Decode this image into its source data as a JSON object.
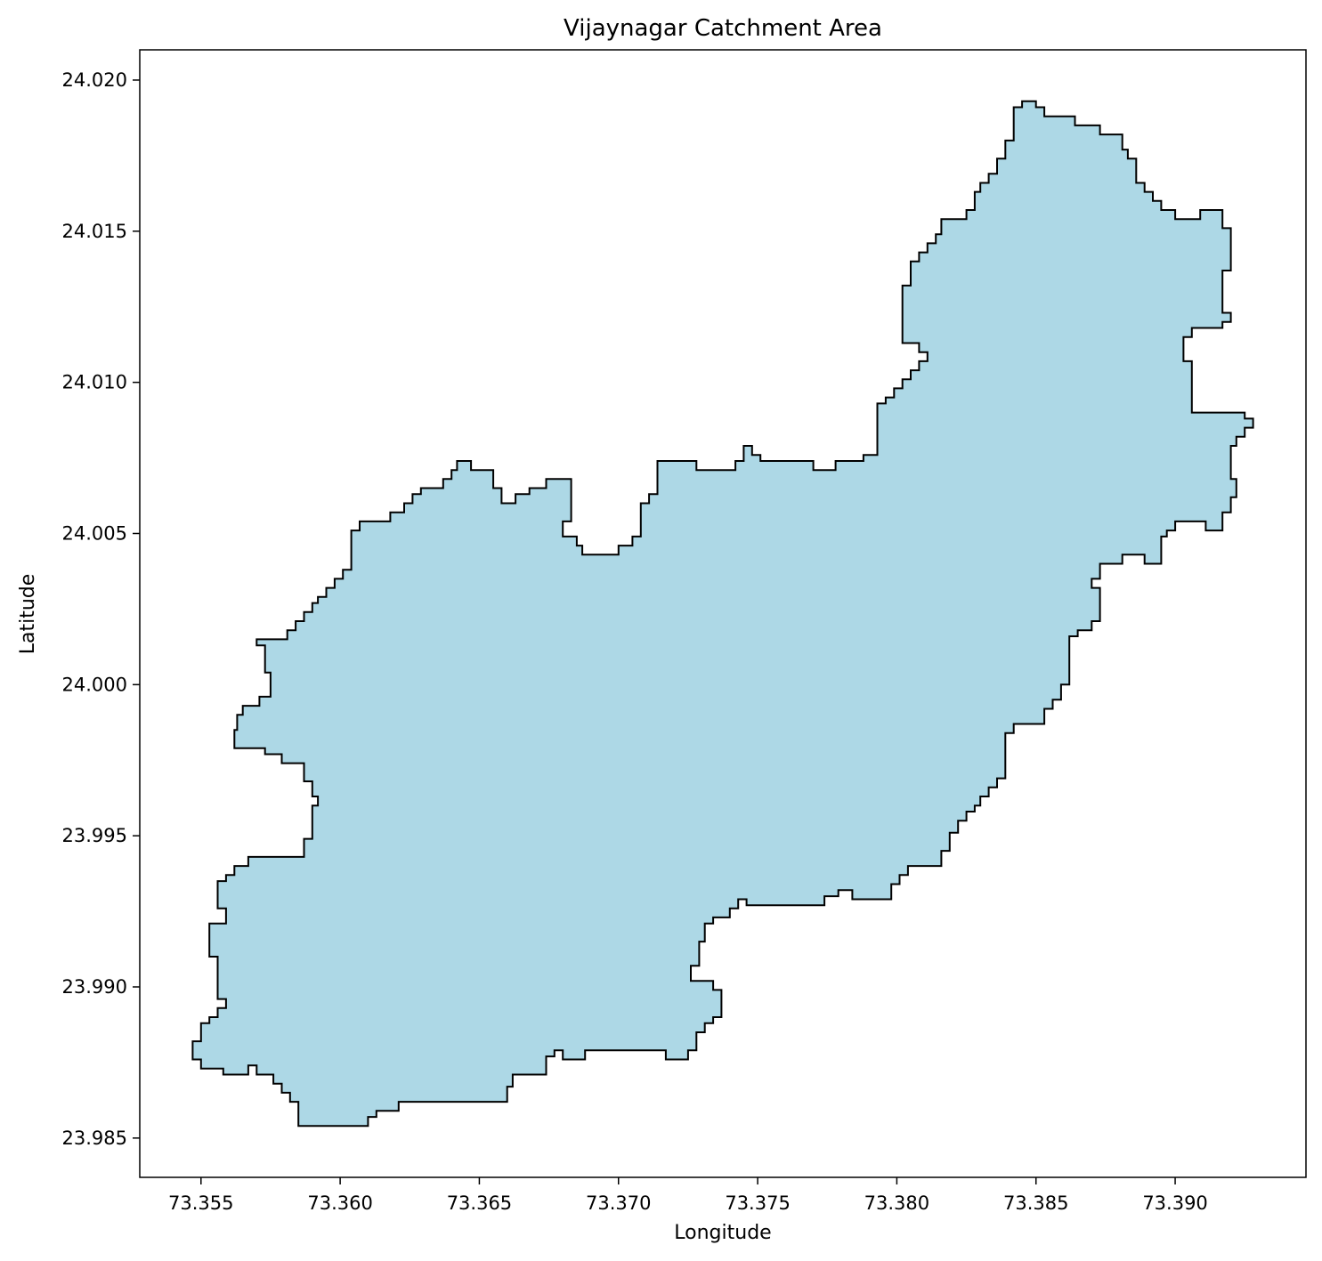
{
  "chart_data": {
    "type": "map",
    "title": "Vijaynagar Catchment Area",
    "xlabel": "Longitude",
    "ylabel": "Latitude",
    "xlim": [
      73.3528,
      73.3947
    ],
    "ylim": [
      23.9837,
      24.021
    ],
    "x_ticks": [
      "73.355",
      "73.360",
      "73.365",
      "73.370",
      "73.375",
      "73.380",
      "73.385",
      "73.390"
    ],
    "x_tick_values": [
      73.355,
      73.36,
      73.365,
      73.37,
      73.375,
      73.38,
      73.385,
      73.39
    ],
    "y_ticks": [
      "23.985",
      "23.990",
      "23.995",
      "24.000",
      "24.005",
      "24.010",
      "24.015",
      "24.020"
    ],
    "y_tick_values": [
      23.985,
      23.99,
      23.995,
      24.0,
      24.005,
      24.01,
      24.015,
      24.02
    ],
    "grid": false,
    "legend": "none",
    "fill_color": "#add8e6",
    "edge_color": "#000000",
    "polygon": [
      [
        73.3585,
        23.9854
      ],
      [
        73.361,
        23.9854
      ],
      [
        73.361,
        23.9857
      ],
      [
        73.3613,
        23.9857
      ],
      [
        73.3613,
        23.9859
      ],
      [
        73.3621,
        23.9859
      ],
      [
        73.3621,
        23.9862
      ],
      [
        73.366,
        23.9862
      ],
      [
        73.366,
        23.9867
      ],
      [
        73.3662,
        23.9867
      ],
      [
        73.3662,
        23.9871
      ],
      [
        73.3674,
        23.9871
      ],
      [
        73.3674,
        23.9877
      ],
      [
        73.3677,
        23.9877
      ],
      [
        73.3677,
        23.9879
      ],
      [
        73.368,
        23.9879
      ],
      [
        73.368,
        23.9876
      ],
      [
        73.3688,
        23.9876
      ],
      [
        73.3688,
        23.9879
      ],
      [
        73.3717,
        23.9879
      ],
      [
        73.3717,
        23.9876
      ],
      [
        73.3725,
        23.9876
      ],
      [
        73.3725,
        23.9879
      ],
      [
        73.3728,
        23.9879
      ],
      [
        73.3728,
        23.9885
      ],
      [
        73.3731,
        23.9885
      ],
      [
        73.3731,
        23.9888
      ],
      [
        73.3734,
        23.9888
      ],
      [
        73.3734,
        23.989
      ],
      [
        73.3737,
        23.989
      ],
      [
        73.3737,
        23.9899
      ],
      [
        73.3734,
        23.9899
      ],
      [
        73.3734,
        23.9902
      ],
      [
        73.3726,
        23.9902
      ],
      [
        73.3726,
        23.9907
      ],
      [
        73.3729,
        23.9907
      ],
      [
        73.3729,
        23.9915
      ],
      [
        73.3731,
        23.9915
      ],
      [
        73.3731,
        23.9921
      ],
      [
        73.3734,
        23.9921
      ],
      [
        73.3734,
        23.9923
      ],
      [
        73.374,
        23.9923
      ],
      [
        73.374,
        23.9926
      ],
      [
        73.3743,
        23.9926
      ],
      [
        73.3743,
        23.9929
      ],
      [
        73.3746,
        23.9929
      ],
      [
        73.3746,
        23.9927
      ],
      [
        73.3774,
        23.9927
      ],
      [
        73.3774,
        23.993
      ],
      [
        73.3779,
        23.993
      ],
      [
        73.3779,
        23.9932
      ],
      [
        73.3784,
        23.9932
      ],
      [
        73.3784,
        23.9929
      ],
      [
        73.3798,
        23.9929
      ],
      [
        73.3798,
        23.9934
      ],
      [
        73.3801,
        23.9934
      ],
      [
        73.3801,
        23.9937
      ],
      [
        73.3804,
        23.9937
      ],
      [
        73.3804,
        23.994
      ],
      [
        73.3816,
        23.994
      ],
      [
        73.3816,
        23.9945
      ],
      [
        73.3819,
        23.9945
      ],
      [
        73.3819,
        23.9951
      ],
      [
        73.3822,
        23.9951
      ],
      [
        73.3822,
        23.9955
      ],
      [
        73.3825,
        23.9955
      ],
      [
        73.3825,
        23.9958
      ],
      [
        73.3828,
        23.9958
      ],
      [
        73.3828,
        23.996
      ],
      [
        73.383,
        23.996
      ],
      [
        73.383,
        23.9963
      ],
      [
        73.3833,
        23.9963
      ],
      [
        73.3833,
        23.9966
      ],
      [
        73.3836,
        23.9966
      ],
      [
        73.3836,
        23.9969
      ],
      [
        73.3839,
        23.9969
      ],
      [
        73.3839,
        23.9984
      ],
      [
        73.3842,
        23.9984
      ],
      [
        73.3842,
        23.9987
      ],
      [
        73.3853,
        23.9987
      ],
      [
        73.3853,
        23.9992
      ],
      [
        73.3856,
        23.9992
      ],
      [
        73.3856,
        23.9995
      ],
      [
        73.3859,
        23.9995
      ],
      [
        73.3859,
        24.0
      ],
      [
        73.3862,
        24.0
      ],
      [
        73.3862,
        24.0016
      ],
      [
        73.3865,
        24.0016
      ],
      [
        73.3865,
        24.0018
      ],
      [
        73.387,
        24.0018
      ],
      [
        73.387,
        24.0021
      ],
      [
        73.3873,
        24.0021
      ],
      [
        73.3873,
        24.0032
      ],
      [
        73.387,
        24.0032
      ],
      [
        73.387,
        24.0035
      ],
      [
        73.3873,
        24.0035
      ],
      [
        73.3873,
        24.004
      ],
      [
        73.3881,
        24.004
      ],
      [
        73.3881,
        24.0043
      ],
      [
        73.3889,
        24.0043
      ],
      [
        73.3889,
        24.004
      ],
      [
        73.3895,
        24.004
      ],
      [
        73.3895,
        24.0049
      ],
      [
        73.3897,
        24.0049
      ],
      [
        73.3897,
        24.0051
      ],
      [
        73.39,
        24.0051
      ],
      [
        73.39,
        24.0054
      ],
      [
        73.3911,
        24.0054
      ],
      [
        73.3911,
        24.0051
      ],
      [
        73.3917,
        24.0051
      ],
      [
        73.3917,
        24.0057
      ],
      [
        73.392,
        24.0057
      ],
      [
        73.392,
        24.0062
      ],
      [
        73.3922,
        24.0062
      ],
      [
        73.3922,
        24.0068
      ],
      [
        73.392,
        24.0068
      ],
      [
        73.392,
        24.0079
      ],
      [
        73.3922,
        24.0079
      ],
      [
        73.3922,
        24.0082
      ],
      [
        73.3925,
        24.0082
      ],
      [
        73.3925,
        24.0085
      ],
      [
        73.3928,
        24.0085
      ],
      [
        73.3928,
        24.0088
      ],
      [
        73.3925,
        24.0088
      ],
      [
        73.3925,
        24.009
      ],
      [
        73.3906,
        24.009
      ],
      [
        73.3906,
        24.0107
      ],
      [
        73.3903,
        24.0107
      ],
      [
        73.3903,
        24.0115
      ],
      [
        73.3906,
        24.0115
      ],
      [
        73.3906,
        24.0118
      ],
      [
        73.3917,
        24.0118
      ],
      [
        73.3917,
        24.012
      ],
      [
        73.392,
        24.012
      ],
      [
        73.392,
        24.0123
      ],
      [
        73.3917,
        24.0123
      ],
      [
        73.3917,
        24.0137
      ],
      [
        73.392,
        24.0137
      ],
      [
        73.392,
        24.0151
      ],
      [
        73.3917,
        24.0151
      ],
      [
        73.3917,
        24.0157
      ],
      [
        73.3909,
        24.0157
      ],
      [
        73.3909,
        24.0154
      ],
      [
        73.39,
        24.0154
      ],
      [
        73.39,
        24.0157
      ],
      [
        73.3895,
        24.0157
      ],
      [
        73.3895,
        24.016
      ],
      [
        73.3892,
        24.016
      ],
      [
        73.3892,
        24.0163
      ],
      [
        73.3889,
        24.0163
      ],
      [
        73.3889,
        24.0166
      ],
      [
        73.3886,
        24.0166
      ],
      [
        73.3886,
        24.0174
      ],
      [
        73.3883,
        24.0174
      ],
      [
        73.3883,
        24.0177
      ],
      [
        73.3881,
        24.0177
      ],
      [
        73.3881,
        24.0182
      ],
      [
        73.3873,
        24.0182
      ],
      [
        73.3873,
        24.0185
      ],
      [
        73.3864,
        24.0185
      ],
      [
        73.3864,
        24.0188
      ],
      [
        73.3853,
        24.0188
      ],
      [
        73.3853,
        24.0191
      ],
      [
        73.385,
        24.0191
      ],
      [
        73.385,
        24.0193
      ],
      [
        73.3845,
        24.0193
      ],
      [
        73.3845,
        24.0191
      ],
      [
        73.3842,
        24.0191
      ],
      [
        73.3842,
        24.018
      ],
      [
        73.3839,
        24.018
      ],
      [
        73.3839,
        24.0174
      ],
      [
        73.3836,
        24.0174
      ],
      [
        73.3836,
        24.0169
      ],
      [
        73.3833,
        24.0169
      ],
      [
        73.3833,
        24.0166
      ],
      [
        73.383,
        24.0166
      ],
      [
        73.383,
        24.0163
      ],
      [
        73.3828,
        24.0163
      ],
      [
        73.3828,
        24.0157
      ],
      [
        73.3825,
        24.0157
      ],
      [
        73.3825,
        24.0154
      ],
      [
        73.3816,
        24.0154
      ],
      [
        73.3816,
        24.0149
      ],
      [
        73.3814,
        24.0149
      ],
      [
        73.3814,
        24.0146
      ],
      [
        73.3811,
        24.0146
      ],
      [
        73.3811,
        24.0143
      ],
      [
        73.3808,
        24.0143
      ],
      [
        73.3808,
        24.014
      ],
      [
        73.3805,
        24.014
      ],
      [
        73.3805,
        24.0132
      ],
      [
        73.3802,
        24.0132
      ],
      [
        73.3802,
        24.0113
      ],
      [
        73.3808,
        24.0113
      ],
      [
        73.3808,
        24.011
      ],
      [
        73.3811,
        24.011
      ],
      [
        73.3811,
        24.0107
      ],
      [
        73.3808,
        24.0107
      ],
      [
        73.3808,
        24.0104
      ],
      [
        73.3805,
        24.0104
      ],
      [
        73.3805,
        24.0101
      ],
      [
        73.3802,
        24.0101
      ],
      [
        73.3802,
        24.0098
      ],
      [
        73.3799,
        24.0098
      ],
      [
        73.3799,
        24.0095
      ],
      [
        73.3796,
        24.0095
      ],
      [
        73.3796,
        24.0093
      ],
      [
        73.3793,
        24.0093
      ],
      [
        73.3793,
        24.0076
      ],
      [
        73.3788,
        24.0076
      ],
      [
        73.3788,
        24.0074
      ],
      [
        73.3778,
        24.0074
      ],
      [
        73.3778,
        24.0071
      ],
      [
        73.377,
        24.0071
      ],
      [
        73.377,
        24.0074
      ],
      [
        73.3751,
        24.0074
      ],
      [
        73.3751,
        24.0076
      ],
      [
        73.3748,
        24.0076
      ],
      [
        73.3748,
        24.0079
      ],
      [
        73.3745,
        24.0079
      ],
      [
        73.3745,
        24.0074
      ],
      [
        73.3742,
        24.0074
      ],
      [
        73.3742,
        24.0071
      ],
      [
        73.3728,
        24.0071
      ],
      [
        73.3728,
        24.0074
      ],
      [
        73.3714,
        24.0074
      ],
      [
        73.3714,
        24.0063
      ],
      [
        73.3711,
        24.0063
      ],
      [
        73.3711,
        24.006
      ],
      [
        73.3708,
        24.006
      ],
      [
        73.3708,
        24.0049
      ],
      [
        73.3705,
        24.0049
      ],
      [
        73.3705,
        24.0046
      ],
      [
        73.37,
        24.0046
      ],
      [
        73.37,
        24.0043
      ],
      [
        73.3687,
        24.0043
      ],
      [
        73.3687,
        24.0046
      ],
      [
        73.3685,
        24.0046
      ],
      [
        73.3685,
        24.0049
      ],
      [
        73.368,
        24.0049
      ],
      [
        73.368,
        24.0054
      ],
      [
        73.3683,
        24.0054
      ],
      [
        73.3683,
        24.0068
      ],
      [
        73.3674,
        24.0068
      ],
      [
        73.3674,
        24.0065
      ],
      [
        73.3668,
        24.0065
      ],
      [
        73.3668,
        24.0063
      ],
      [
        73.3663,
        24.0063
      ],
      [
        73.3663,
        24.006
      ],
      [
        73.3658,
        24.006
      ],
      [
        73.3658,
        24.0065
      ],
      [
        73.3655,
        24.0065
      ],
      [
        73.3655,
        24.0071
      ],
      [
        73.3647,
        24.0071
      ],
      [
        73.3647,
        24.0074
      ],
      [
        73.3642,
        24.0074
      ],
      [
        73.3642,
        24.0071
      ],
      [
        73.364,
        24.0071
      ],
      [
        73.364,
        24.0068
      ],
      [
        73.3637,
        24.0068
      ],
      [
        73.3637,
        24.0065
      ],
      [
        73.3629,
        24.0065
      ],
      [
        73.3629,
        24.0063
      ],
      [
        73.3626,
        24.0063
      ],
      [
        73.3626,
        24.006
      ],
      [
        73.3623,
        24.006
      ],
      [
        73.3623,
        24.0057
      ],
      [
        73.3618,
        24.0057
      ],
      [
        73.3618,
        24.0054
      ],
      [
        73.3607,
        24.0054
      ],
      [
        73.3607,
        24.0051
      ],
      [
        73.3604,
        24.0051
      ],
      [
        73.3604,
        24.0038
      ],
      [
        73.3601,
        24.0038
      ],
      [
        73.3601,
        24.0035
      ],
      [
        73.3598,
        24.0035
      ],
      [
        73.3598,
        24.0032
      ],
      [
        73.3595,
        24.0032
      ],
      [
        73.3595,
        24.0029
      ],
      [
        73.3592,
        24.0029
      ],
      [
        73.3592,
        24.0027
      ],
      [
        73.359,
        24.0027
      ],
      [
        73.359,
        24.0024
      ],
      [
        73.3587,
        24.0024
      ],
      [
        73.3587,
        24.0021
      ],
      [
        73.3584,
        24.0021
      ],
      [
        73.3584,
        24.0018
      ],
      [
        73.3581,
        24.0018
      ],
      [
        73.3581,
        24.0015
      ],
      [
        73.357,
        24.0015
      ],
      [
        73.357,
        24.0013
      ],
      [
        73.3573,
        24.0013
      ],
      [
        73.3573,
        24.0004
      ],
      [
        73.3575,
        24.0004
      ],
      [
        73.3575,
        23.9996
      ],
      [
        73.3571,
        23.9996
      ],
      [
        73.3571,
        23.9993
      ],
      [
        73.3565,
        23.9993
      ],
      [
        73.3565,
        23.999
      ],
      [
        73.3563,
        23.999
      ],
      [
        73.3563,
        23.9985
      ],
      [
        73.3562,
        23.9985
      ],
      [
        73.3562,
        23.9979
      ],
      [
        73.3573,
        23.9979
      ],
      [
        73.3573,
        23.9977
      ],
      [
        73.3579,
        23.9977
      ],
      [
        73.3579,
        23.9974
      ],
      [
        73.3587,
        23.9974
      ],
      [
        73.3587,
        23.9968
      ],
      [
        73.359,
        23.9968
      ],
      [
        73.359,
        23.9963
      ],
      [
        73.3592,
        23.9963
      ],
      [
        73.3592,
        23.996
      ],
      [
        73.359,
        23.996
      ],
      [
        73.359,
        23.9949
      ],
      [
        73.3587,
        23.9949
      ],
      [
        73.3587,
        23.9943
      ],
      [
        73.3567,
        23.9943
      ],
      [
        73.3567,
        23.994
      ],
      [
        73.3562,
        23.994
      ],
      [
        73.3562,
        23.9937
      ],
      [
        73.3559,
        23.9937
      ],
      [
        73.3559,
        23.9935
      ],
      [
        73.3556,
        23.9935
      ],
      [
        73.3556,
        23.9926
      ],
      [
        73.3559,
        23.9926
      ],
      [
        73.3559,
        23.9921
      ],
      [
        73.3553,
        23.9921
      ],
      [
        73.3553,
        23.991
      ],
      [
        73.3556,
        23.991
      ],
      [
        73.3556,
        23.9896
      ],
      [
        73.3559,
        23.9896
      ],
      [
        73.3559,
        23.9893
      ],
      [
        73.3556,
        23.9893
      ],
      [
        73.3556,
        23.989
      ],
      [
        73.3553,
        23.989
      ],
      [
        73.3553,
        23.9888
      ],
      [
        73.355,
        23.9888
      ],
      [
        73.355,
        23.9882
      ],
      [
        73.3547,
        23.9882
      ],
      [
        73.3547,
        23.9876
      ],
      [
        73.355,
        23.9876
      ],
      [
        73.355,
        23.9873
      ],
      [
        73.3558,
        23.9873
      ],
      [
        73.3558,
        23.9871
      ],
      [
        73.3567,
        23.9871
      ],
      [
        73.3567,
        23.9874
      ],
      [
        73.357,
        23.9874
      ],
      [
        73.357,
        23.9871
      ],
      [
        73.3576,
        23.9871
      ],
      [
        73.3576,
        23.9868
      ],
      [
        73.3579,
        23.9868
      ],
      [
        73.3579,
        23.9865
      ],
      [
        73.3582,
        23.9865
      ],
      [
        73.3582,
        23.9862
      ],
      [
        73.3585,
        23.9862
      ],
      [
        73.3585,
        23.9854
      ]
    ]
  }
}
